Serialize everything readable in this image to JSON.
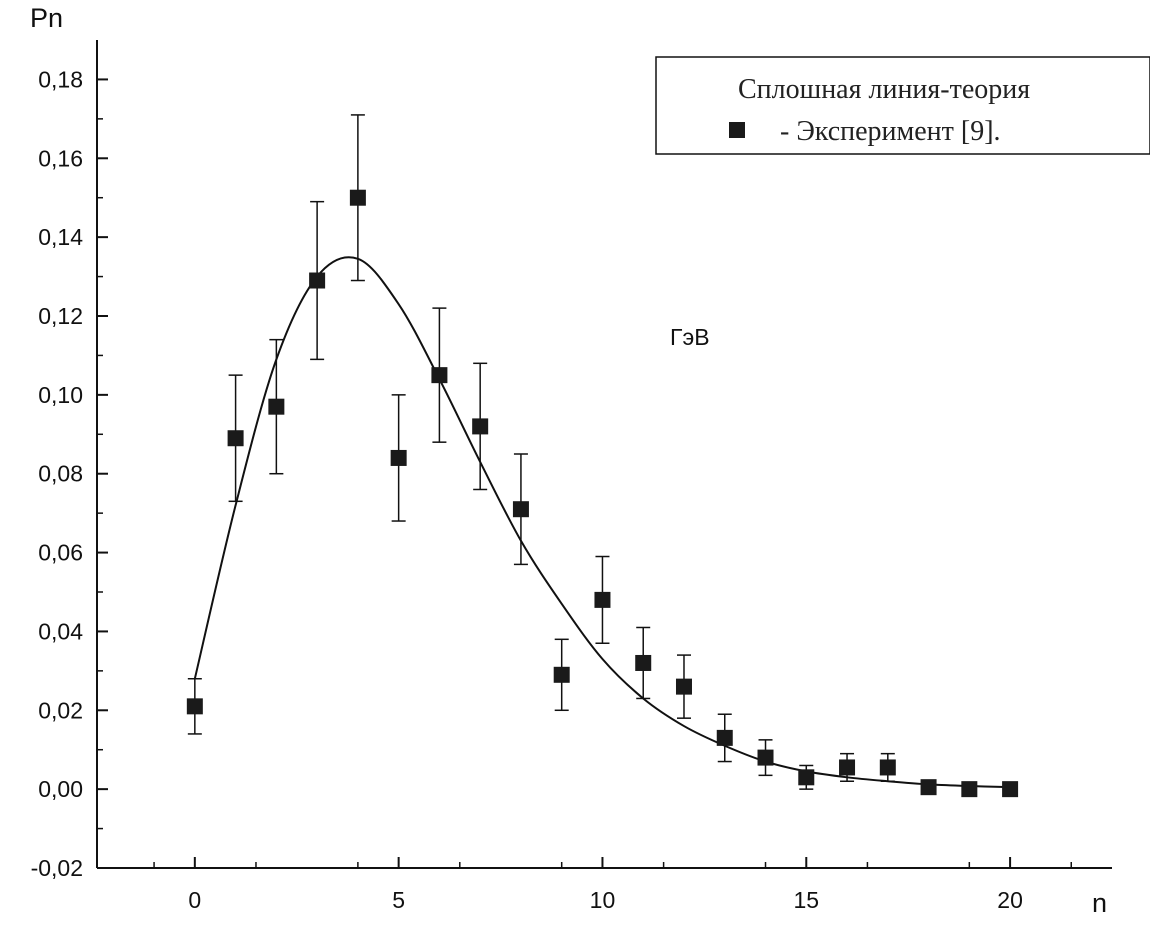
{
  "chart_data": {
    "type": "scatter",
    "ylabel": "Pn",
    "xlabel": "n",
    "xlim": [
      -2.4,
      22.5
    ],
    "ylim": [
      -0.02,
      0.19
    ],
    "x_ticks": [
      0,
      5,
      10,
      15,
      20
    ],
    "x_tick_labels": [
      "0",
      "5",
      "10",
      "15",
      "20"
    ],
    "y_ticks": [
      -0.02,
      0.0,
      0.02,
      0.04,
      0.06,
      0.08,
      0.1,
      0.12,
      0.14,
      0.16,
      0.18
    ],
    "y_tick_labels": [
      "-0,02",
      "0,00",
      "0,02",
      "0,04",
      "0,06",
      "0,08",
      "0,10",
      "0,12",
      "0,14",
      "0,16",
      "0,18"
    ],
    "grid": false,
    "legend_position": "top-right",
    "legend": {
      "line_label": "Сплошная  линия-теория",
      "marker_label": "- Эксперимент [9]."
    },
    "annotation": "ГэВ",
    "series": [
      {
        "kind": "markers-with-error-bars",
        "points": [
          {
            "x": 0,
            "y": 0.021,
            "err": 0.007
          },
          {
            "x": 1,
            "y": 0.089,
            "err": 0.016
          },
          {
            "x": 2,
            "y": 0.097,
            "err": 0.017
          },
          {
            "x": 3,
            "y": 0.129,
            "err": 0.02
          },
          {
            "x": 4,
            "y": 0.15,
            "err": 0.021
          },
          {
            "x": 5,
            "y": 0.084,
            "err": 0.016
          },
          {
            "x": 6,
            "y": 0.105,
            "err": 0.017
          },
          {
            "x": 7,
            "y": 0.092,
            "err": 0.016
          },
          {
            "x": 8,
            "y": 0.071,
            "err": 0.014
          },
          {
            "x": 9,
            "y": 0.029,
            "err": 0.009
          },
          {
            "x": 10,
            "y": 0.048,
            "err": 0.011
          },
          {
            "x": 11,
            "y": 0.032,
            "err": 0.009
          },
          {
            "x": 12,
            "y": 0.026,
            "err": 0.008
          },
          {
            "x": 13,
            "y": 0.013,
            "err": 0.006
          },
          {
            "x": 14,
            "y": 0.008,
            "err": 0.0045
          },
          {
            "x": 15,
            "y": 0.003,
            "err": 0.003
          },
          {
            "x": 16,
            "y": 0.0055,
            "err": 0.0035
          },
          {
            "x": 17,
            "y": 0.0055,
            "err": 0.0035
          },
          {
            "x": 18,
            "y": 0.0005,
            "err": 0.001
          },
          {
            "x": 19,
            "y": 0.0,
            "err": 0.0007
          },
          {
            "x": 20,
            "y": 0.0,
            "err": 0.0005
          }
        ]
      },
      {
        "kind": "line",
        "x": [
          0,
          1,
          2,
          3,
          4,
          5,
          6,
          7,
          8,
          9,
          10,
          11,
          12,
          13,
          14,
          15,
          16,
          17,
          18,
          19,
          20
        ],
        "y": [
          0.028,
          0.072,
          0.109,
          0.13,
          0.1345,
          0.123,
          0.104,
          0.083,
          0.063,
          0.047,
          0.033,
          0.023,
          0.016,
          0.011,
          0.007,
          0.0045,
          0.003,
          0.002,
          0.0012,
          0.0008,
          0.0005
        ]
      }
    ]
  },
  "colors": {
    "axis": "#111111",
    "marker": "#1a1a1a",
    "line": "#111111",
    "background": "#ffffff"
  }
}
